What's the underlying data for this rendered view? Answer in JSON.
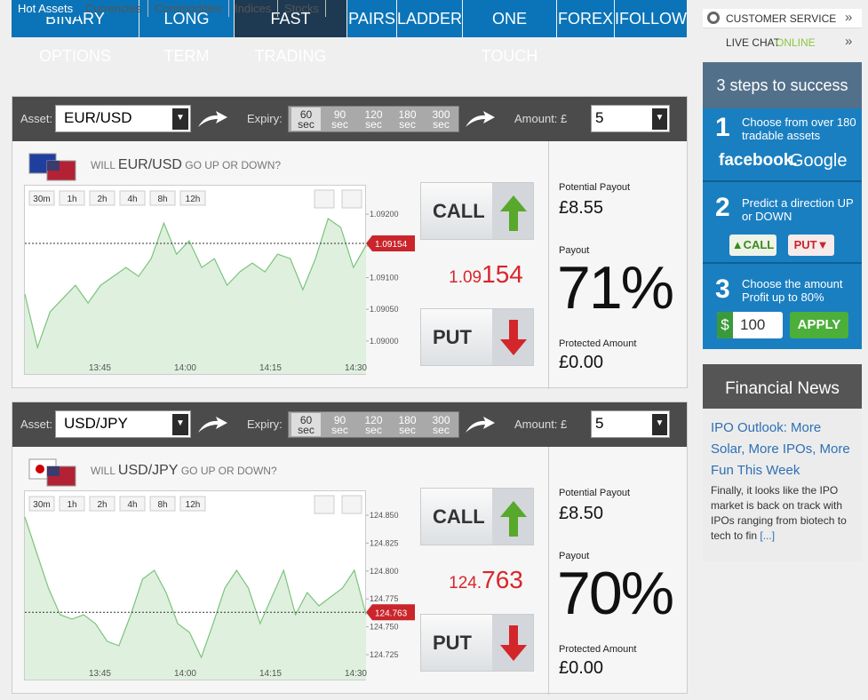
{
  "nav": {
    "tabs": [
      "BINARY OPTIONS",
      "LONG TERM",
      "FAST TRADING",
      "PAIRS",
      "LADDER",
      "ONE TOUCH",
      "FOREX",
      "IFOLLOW"
    ],
    "active": 2
  },
  "subnav": {
    "tabs": [
      "Hot Assets",
      "Currencies",
      "Commodities",
      "Indices",
      "Stocks"
    ],
    "active": 0
  },
  "panels": [
    {
      "asset_label": "Asset:",
      "asset": "EUR/USD",
      "expiry_label": "Expiry:",
      "expiry": [
        {
          "value": 60,
          "unit": "sec"
        },
        {
          "value": 90,
          "unit": "sec"
        },
        {
          "value": 120,
          "unit": "sec"
        },
        {
          "value": 180,
          "unit": "sec"
        },
        {
          "value": 300,
          "unit": "sec"
        }
      ],
      "expiry_active": 0,
      "amount_label": "Amount: £",
      "amount": 5,
      "question_prefix": "WILL",
      "question_asset": "EUR/USD",
      "question_suffix": "GO UP OR DOWN?",
      "chart": {
        "ranges": [
          "30m",
          "1h",
          "2h",
          "4h",
          "8h",
          "12h"
        ],
        "x_labels": [
          "13:45",
          "14:00",
          "14:15",
          "14:30"
        ],
        "ylim": [
          1.08948,
          1.09245
        ],
        "yticks": [
          {
            "value": 1.092,
            "label": "1.09200"
          },
          {
            "value": 1.0915,
            "label": "1.09150"
          },
          {
            "value": 1.091,
            "label": "1.09100"
          },
          {
            "value": 1.0905,
            "label": "1.09050"
          },
          {
            "value": 1.09,
            "label": "1.09000"
          }
        ],
        "current": 1.09154,
        "color": "#7cc47c",
        "values": [
          1.09074,
          1.0899,
          1.09046,
          1.09067,
          1.09088,
          1.0906,
          1.09088,
          1.09102,
          1.09116,
          1.09102,
          1.0913,
          1.09186,
          1.09137,
          1.09158,
          1.09116,
          1.0913,
          1.09088,
          1.09109,
          1.09123,
          1.09109,
          1.09137,
          1.0913,
          1.09081,
          1.0913,
          1.09193,
          1.09179,
          1.09116,
          1.09151
        ]
      },
      "price_main": "1.09",
      "price_pip": "154",
      "call": "CALL",
      "put": "PUT",
      "potential_label": "Potential Payout",
      "potential": "£8.55",
      "payout_label": "Payout",
      "payout": "71%",
      "protected_label": "Protected Amount",
      "protected": "£0.00"
    },
    {
      "asset_label": "Asset:",
      "asset": "USD/JPY",
      "expiry_label": "Expiry:",
      "expiry": [
        {
          "value": 60,
          "unit": "sec"
        },
        {
          "value": 90,
          "unit": "sec"
        },
        {
          "value": 120,
          "unit": "sec"
        },
        {
          "value": 180,
          "unit": "sec"
        },
        {
          "value": 300,
          "unit": "sec"
        }
      ],
      "expiry_active": 0,
      "amount_label": "Amount: £",
      "amount": 5,
      "question_prefix": "WILL",
      "question_asset": "USD/JPY",
      "question_suffix": "GO UP OR DOWN?",
      "chart": {
        "ranges": [
          "30m",
          "1h",
          "2h",
          "4h",
          "8h",
          "12h"
        ],
        "x_labels": [
          "13:45",
          "14:00",
          "14:15",
          "14:30"
        ],
        "ylim": [
          124.7027,
          124.8715
        ],
        "yticks": [
          {
            "value": 124.85,
            "label": "124.850"
          },
          {
            "value": 124.825,
            "label": "124.825"
          },
          {
            "value": 124.8,
            "label": "124.800"
          },
          {
            "value": 124.775,
            "label": "124.775"
          },
          {
            "value": 124.75,
            "label": "124.750"
          },
          {
            "value": 124.725,
            "label": "124.725"
          }
        ],
        "current": 124.763,
        "color": "#7cc47c",
        "values": [
          124.8484,
          124.8166,
          124.7847,
          124.7608,
          124.7569,
          124.7608,
          124.7529,
          124.7369,
          124.733,
          124.7608,
          124.7927,
          124.8006,
          124.7807,
          124.7529,
          124.7449,
          124.7226,
          124.7529,
          124.7847,
          124.8006,
          124.7847,
          124.7529,
          124.7768,
          124.8006,
          124.7608,
          124.7807,
          124.7688,
          124.7768,
          124.7847,
          124.8006,
          124.7608
        ]
      },
      "price_main": "124.",
      "price_pip": "763",
      "call": "CALL",
      "put": "PUT",
      "potential_label": "Potential Payout",
      "potential": "£8.50",
      "payout_label": "Payout",
      "payout": "70%",
      "protected_label": "Protected Amount",
      "protected": "£0.00"
    }
  ],
  "sidebar": {
    "customer_service": "CUSTOMER SERVICE",
    "live_chat": "LIVE CHAT",
    "live_chat_status": "ONLINE",
    "steps": {
      "title": "3 steps to success",
      "items": [
        {
          "number": "1",
          "text": "Choose from over 180 tradable assets",
          "logo_1": "facebook.",
          "logo_2": "Google"
        },
        {
          "number": "2",
          "text": "Predict a direction UP or DOWN",
          "call": "CALL",
          "put": "PUT"
        },
        {
          "number": "3",
          "text": "Choose the amount Profit up to 80%",
          "currency": "$",
          "amount": "100",
          "button": "APPLY"
        }
      ]
    },
    "news": {
      "title": "Financial News",
      "headline": "IPO Outlook: More Solar, More IPOs, More Fun This Week",
      "body": "Finally, it looks like the IPO market is back on track with IPOs ranging from biotech to tech to fin",
      "more": "[...]"
    }
  }
}
